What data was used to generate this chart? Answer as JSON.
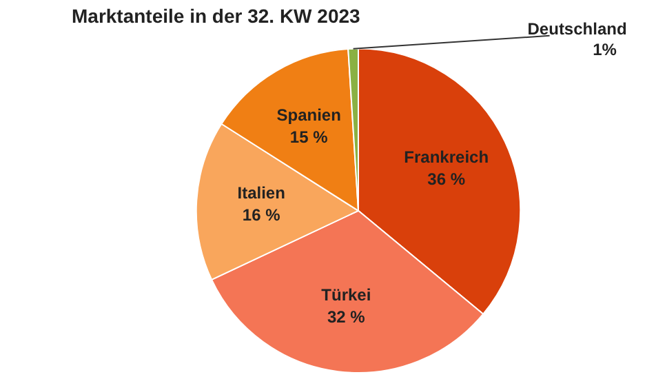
{
  "chart_data": {
    "type": "pie",
    "title": "Marktanteile in der 32. KW 2023",
    "categories": [
      "Frankreich",
      "Türkei",
      "Italien",
      "Spanien",
      "Deutschland"
    ],
    "values": [
      36,
      32,
      16,
      15,
      1
    ],
    "colors": [
      "#d9400b",
      "#f47555",
      "#f9a65c",
      "#f07f14",
      "#8ab143"
    ],
    "value_labels": [
      "36 %",
      "32 %",
      "16 %",
      "15 %",
      "1%"
    ],
    "legend": false
  }
}
